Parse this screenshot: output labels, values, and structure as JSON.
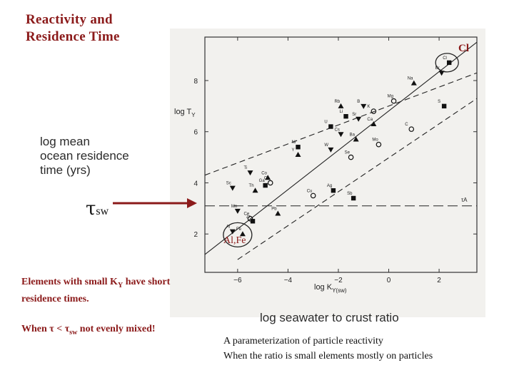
{
  "title": {
    "line1": "Reactivity and",
    "line2": "Residence Time"
  },
  "annotations": {
    "cl": "Cl",
    "alfe": "Al,Fe",
    "tau": "τ",
    "tau_sub": "sw"
  },
  "y_label": {
    "line1": "log mean",
    "line2": "ocean residence",
    "line3": "time (yrs)"
  },
  "x_label": "log seawater to crust ratio",
  "notes": {
    "note1_a": "Elements with small K",
    "note1_sub": "Y",
    "note1_b": " have short residence times.",
    "note2_a": "When τ < τ",
    "note2_sub": "sw",
    "note2_b": " not evenly mixed!"
  },
  "caption": {
    "line1": "A parameterization of particle reactivity",
    "line2": "When the ratio is small elements mostly on particles"
  },
  "plot": {
    "y_axis_label": "log T",
    "y_axis_sub": "Y",
    "x_axis_label": "log K",
    "x_axis_sub": "Y(sw)",
    "tau_line_label": "τA"
  },
  "colors": {
    "accent": "#8b1a1a",
    "arrow": "#8b1a1a",
    "ink": "#222222",
    "photo_bg": "#f2f1ee"
  },
  "chart_data": {
    "type": "scatter",
    "x": {
      "label": "log K_Y(sw)",
      "ticks": [
        -6,
        -4,
        -2,
        0,
        2
      ],
      "range": [
        -7.3,
        3.5
      ]
    },
    "y": {
      "label": "log T_Y",
      "ticks": [
        2,
        4,
        6,
        8
      ],
      "range": [
        0.5,
        9.7
      ]
    },
    "points": [
      {
        "el": "Cl",
        "x": 2.4,
        "y": 8.7
      },
      {
        "el": "Br",
        "x": 2.1,
        "y": 8.3
      },
      {
        "el": "Na",
        "x": 1.0,
        "y": 7.9
      },
      {
        "el": "Mg",
        "x": 0.2,
        "y": 7.2
      },
      {
        "el": "S",
        "x": 2.2,
        "y": 7.0
      },
      {
        "el": "B",
        "x": -1.0,
        "y": 7.0
      },
      {
        "el": "Rb",
        "x": -1.9,
        "y": 7.0
      },
      {
        "el": "K",
        "x": -0.6,
        "y": 6.8
      },
      {
        "el": "Li",
        "x": -1.7,
        "y": 6.6
      },
      {
        "el": "Sr",
        "x": -1.2,
        "y": 6.5
      },
      {
        "el": "Ca",
        "x": -0.6,
        "y": 6.3
      },
      {
        "el": "C",
        "x": 0.9,
        "y": 6.1
      },
      {
        "el": "U",
        "x": -2.3,
        "y": 6.2
      },
      {
        "el": "Cs",
        "x": -1.9,
        "y": 5.9
      },
      {
        "el": "Ba",
        "x": -1.3,
        "y": 5.7
      },
      {
        "el": "Mo",
        "x": -0.4,
        "y": 5.5
      },
      {
        "el": "Ni",
        "x": -3.6,
        "y": 5.4
      },
      {
        "el": "W",
        "x": -2.3,
        "y": 5.3
      },
      {
        "el": "Y",
        "x": -3.6,
        "y": 5.1
      },
      {
        "el": "Se",
        "x": -1.5,
        "y": 5.0
      },
      {
        "el": "Sb",
        "x": -1.4,
        "y": 3.4
      },
      {
        "el": "Ti",
        "x": -5.5,
        "y": 4.4
      },
      {
        "el": "Co",
        "x": -4.8,
        "y": 4.2
      },
      {
        "el": "Cr",
        "x": -4.7,
        "y": 4.0
      },
      {
        "el": "Ga",
        "x": -4.9,
        "y": 3.9
      },
      {
        "el": "Sc",
        "x": -6.2,
        "y": 3.8
      },
      {
        "el": "Th",
        "x": -5.3,
        "y": 3.7
      },
      {
        "el": "Cu",
        "x": -3.0,
        "y": 3.5
      },
      {
        "el": "Ag",
        "x": -2.2,
        "y": 3.7
      },
      {
        "el": "Mn",
        "x": -6.0,
        "y": 2.9
      },
      {
        "el": "Pb",
        "x": -4.4,
        "y": 2.8
      },
      {
        "el": "Ce",
        "x": -5.5,
        "y": 2.6
      },
      {
        "el": "Zr",
        "x": -5.4,
        "y": 2.5
      },
      {
        "el": "Al",
        "x": -6.2,
        "y": 2.1
      },
      {
        "el": "Fe",
        "x": -5.8,
        "y": 2.0
      }
    ],
    "reference_lines": [
      {
        "name": "upper dashed",
        "style": "dashed",
        "from": [
          -7.3,
          4.3
        ],
        "to": [
          3.5,
          8.3
        ]
      },
      {
        "name": "lower dashed",
        "style": "dashed",
        "from": [
          -6.0,
          1.0
        ],
        "to": [
          3.5,
          7.3
        ]
      },
      {
        "name": "solid fit",
        "style": "solid",
        "from": [
          -7.3,
          1.2
        ],
        "to": [
          3.5,
          9.5
        ]
      },
      {
        "name": "tau_sw level",
        "style": "long-dash",
        "from": [
          -7.3,
          3.1
        ],
        "to": [
          3.5,
          3.1
        ]
      }
    ],
    "highlights": [
      {
        "label": "Cl",
        "x": 2.4,
        "y": 8.7
      },
      {
        "label": "Al,Fe",
        "x": -6.0,
        "y": 2.05
      }
    ]
  }
}
